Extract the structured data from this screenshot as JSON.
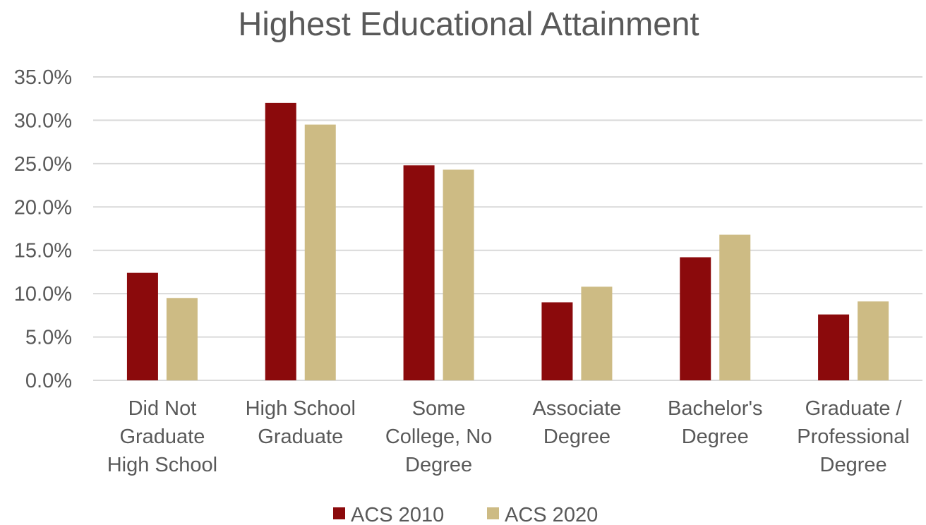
{
  "chart_data": {
    "type": "bar",
    "title": "Highest Educational Attainment",
    "xlabel": "",
    "ylabel": "",
    "ylim": [
      0,
      35
    ],
    "y_ticks": [
      "0.0%",
      "5.0%",
      "10.0%",
      "15.0%",
      "20.0%",
      "25.0%",
      "30.0%",
      "35.0%"
    ],
    "grid": true,
    "legend_position": "bottom",
    "categories": [
      [
        "Did Not",
        "Graduate",
        "High School"
      ],
      [
        "High School",
        "Graduate"
      ],
      [
        "Some",
        "College, No",
        "Degree"
      ],
      [
        "Associate",
        "Degree"
      ],
      [
        "Bachelor's",
        "Degree"
      ],
      [
        "Graduate /",
        "Professional",
        "Degree"
      ]
    ],
    "series": [
      {
        "name": "ACS 2010",
        "color": "#8b0a0c",
        "values": [
          12.4,
          32.0,
          24.8,
          9.0,
          14.2,
          7.6
        ]
      },
      {
        "name": "ACS 2020",
        "color": "#cdbb84",
        "values": [
          9.5,
          29.5,
          24.3,
          10.8,
          16.8,
          9.1
        ]
      }
    ]
  }
}
